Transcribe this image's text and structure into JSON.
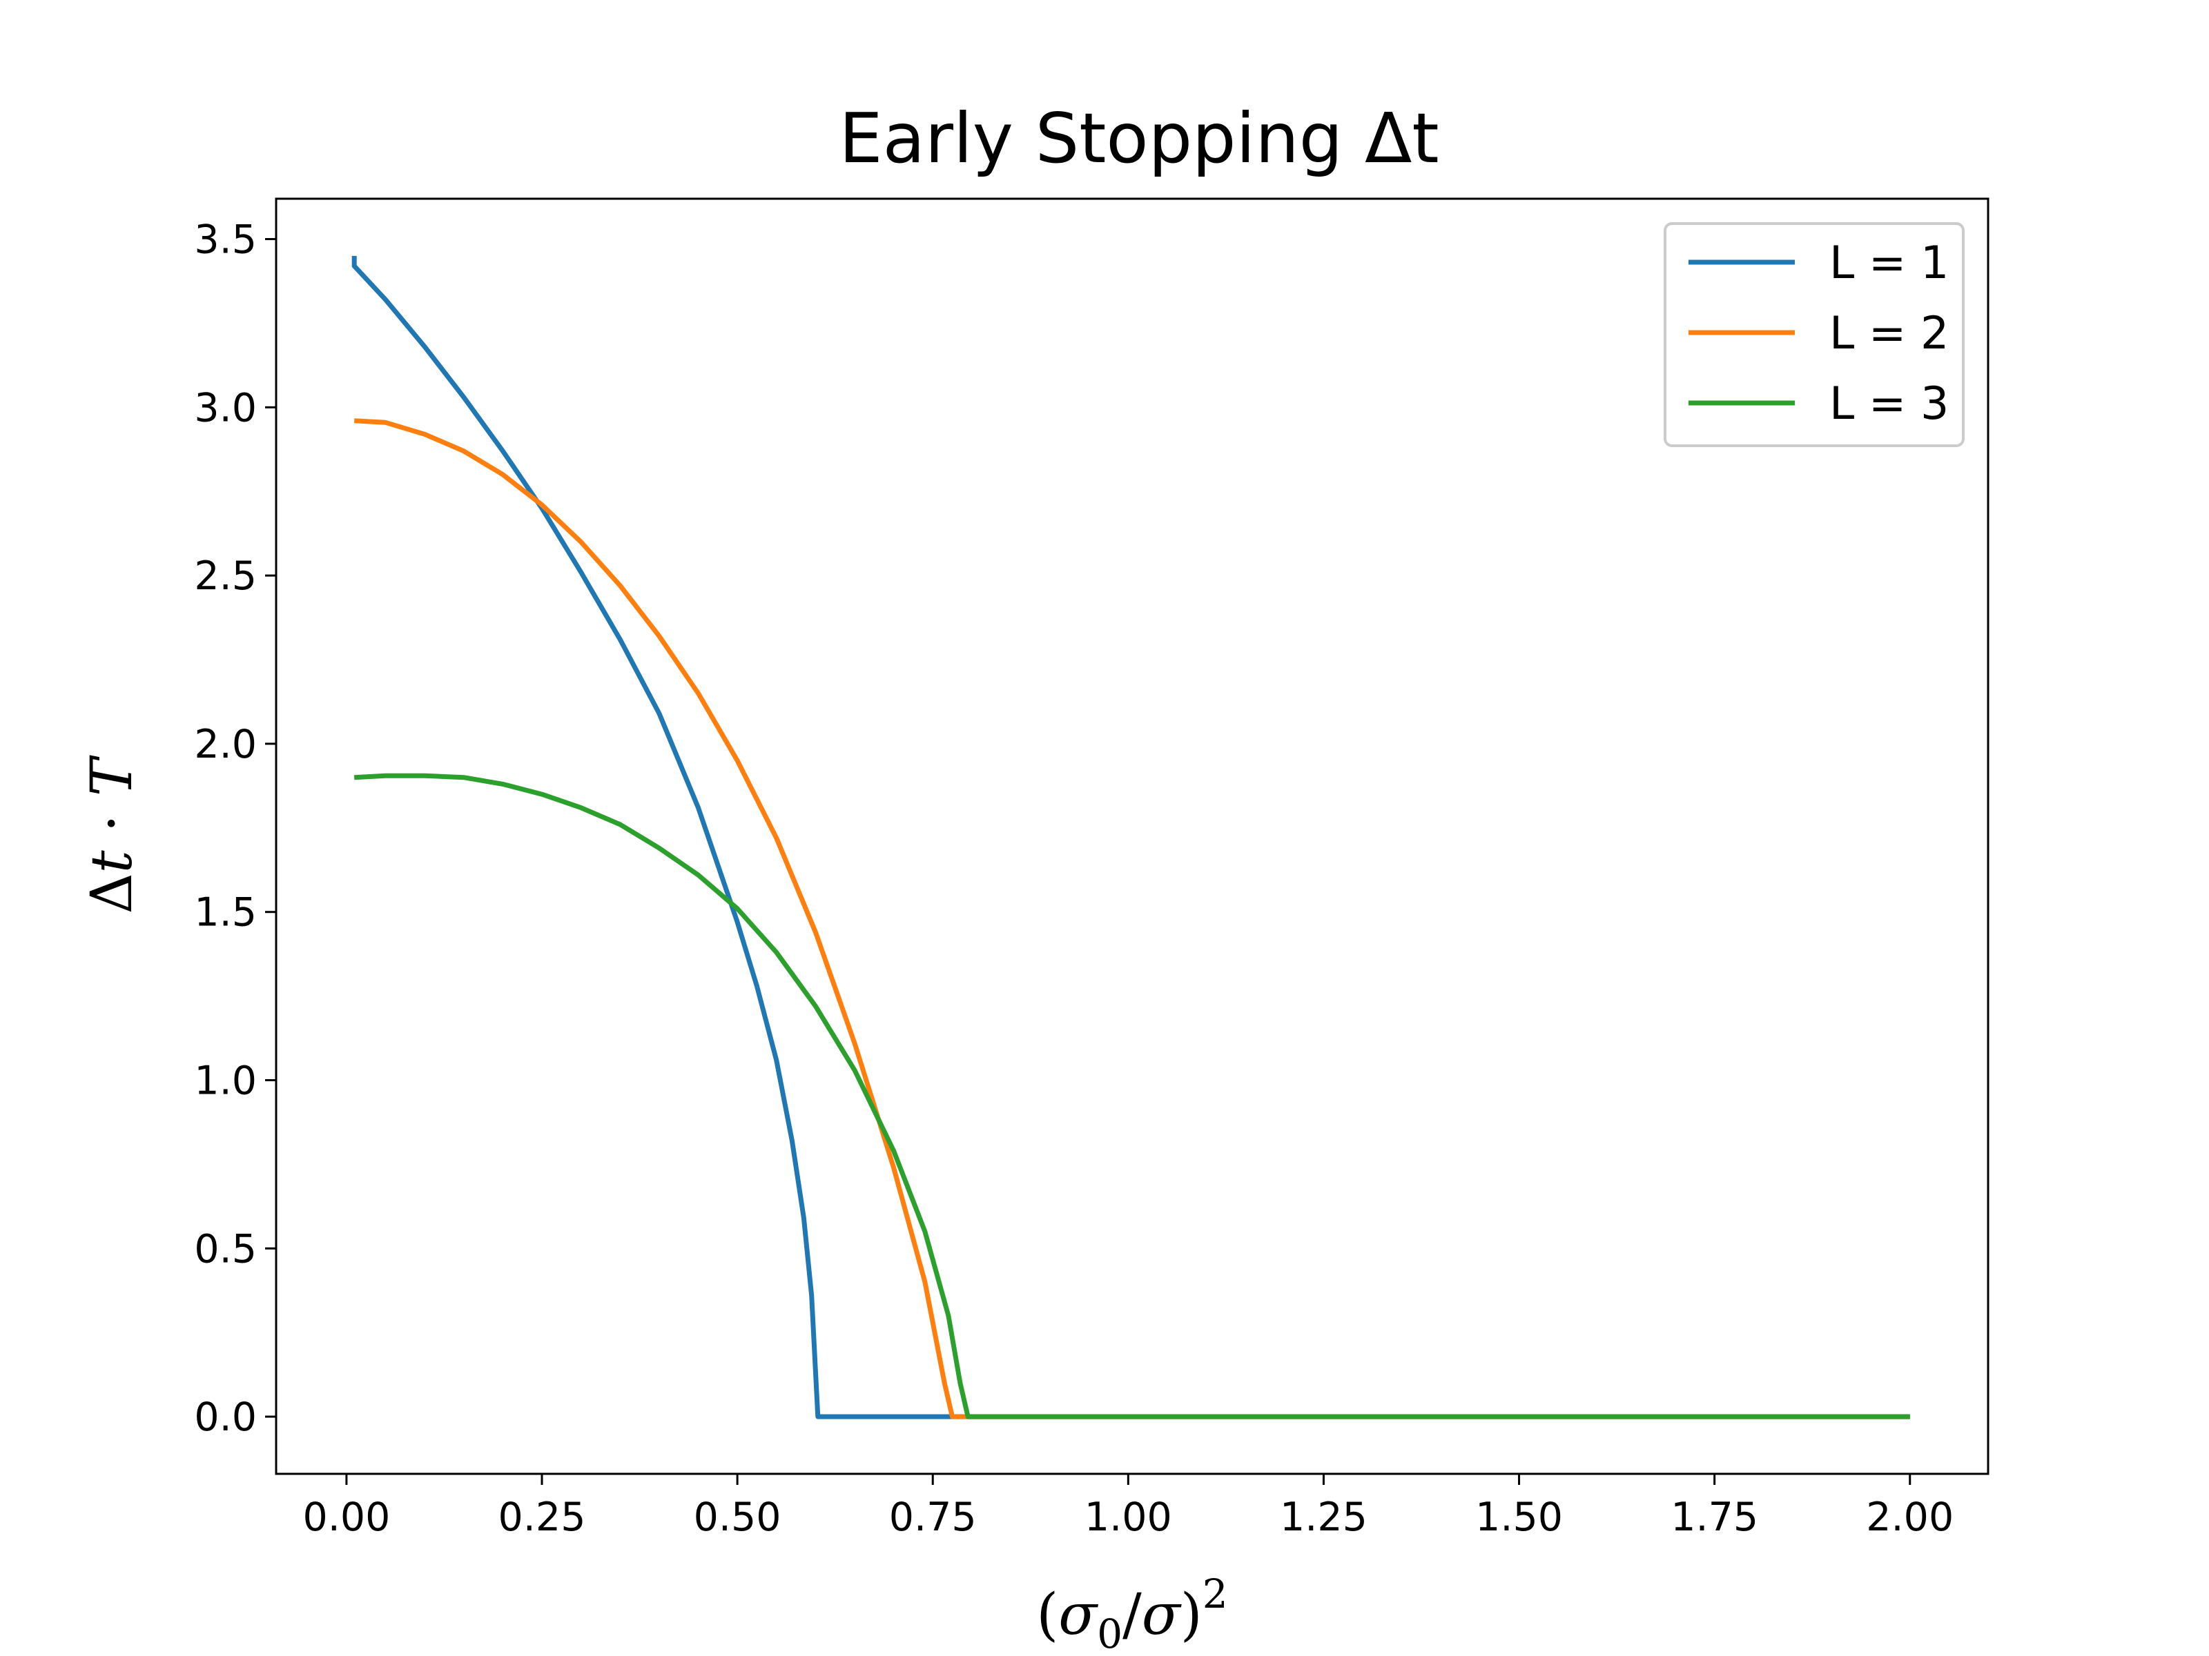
{
  "chart_data": {
    "type": "line",
    "title": "Early Stopping Δt",
    "xlabel": "(σ0/σ)2",
    "ylabel": "Δt · T",
    "xlim": [
      -0.09,
      2.1
    ],
    "ylim": [
      -0.17,
      3.62
    ],
    "x_ticks": [
      0.0,
      0.25,
      0.5,
      0.75,
      1.0,
      1.25,
      1.5,
      1.75,
      2.0
    ],
    "x_tick_labels": [
      "0.00",
      "0.25",
      "0.50",
      "0.75",
      "1.00",
      "1.25",
      "1.50",
      "1.75",
      "2.00"
    ],
    "y_ticks": [
      0.0,
      0.5,
      1.0,
      1.5,
      2.0,
      2.5,
      3.0,
      3.5
    ],
    "y_tick_labels": [
      "0.0",
      "0.5",
      "1.0",
      "1.5",
      "2.0",
      "2.5",
      "3.0",
      "3.5"
    ],
    "grid": false,
    "legend_position": "top-right",
    "series": [
      {
        "name": "L = 1",
        "color": "#1f77b4",
        "points": [
          [
            0.01,
            3.45
          ],
          [
            0.01,
            3.42
          ],
          [
            0.05,
            3.32
          ],
          [
            0.1,
            3.18
          ],
          [
            0.15,
            3.03
          ],
          [
            0.2,
            2.87
          ],
          [
            0.25,
            2.7
          ],
          [
            0.3,
            2.51
          ],
          [
            0.35,
            2.31
          ],
          [
            0.4,
            2.09
          ],
          [
            0.45,
            1.81
          ],
          [
            0.5,
            1.47
          ],
          [
            0.525,
            1.28
          ],
          [
            0.55,
            1.06
          ],
          [
            0.57,
            0.82
          ],
          [
            0.585,
            0.59
          ],
          [
            0.595,
            0.36
          ],
          [
            0.603,
            0.0
          ],
          [
            2.0,
            0.0
          ]
        ]
      },
      {
        "name": "L = 2",
        "color": "#ff7f0e",
        "points": [
          [
            0.01,
            2.96
          ],
          [
            0.05,
            2.955
          ],
          [
            0.1,
            2.92
          ],
          [
            0.15,
            2.87
          ],
          [
            0.2,
            2.8
          ],
          [
            0.25,
            2.71
          ],
          [
            0.3,
            2.6
          ],
          [
            0.35,
            2.47
          ],
          [
            0.4,
            2.32
          ],
          [
            0.45,
            2.15
          ],
          [
            0.5,
            1.95
          ],
          [
            0.55,
            1.72
          ],
          [
            0.6,
            1.44
          ],
          [
            0.65,
            1.11
          ],
          [
            0.7,
            0.74
          ],
          [
            0.74,
            0.4
          ],
          [
            0.765,
            0.1
          ],
          [
            0.775,
            0.0
          ],
          [
            2.0,
            0.0
          ]
        ]
      },
      {
        "name": "L = 3",
        "color": "#2ca02c",
        "points": [
          [
            0.01,
            1.9
          ],
          [
            0.05,
            1.905
          ],
          [
            0.1,
            1.905
          ],
          [
            0.15,
            1.9
          ],
          [
            0.2,
            1.88
          ],
          [
            0.25,
            1.85
          ],
          [
            0.3,
            1.81
          ],
          [
            0.35,
            1.76
          ],
          [
            0.4,
            1.69
          ],
          [
            0.45,
            1.61
          ],
          [
            0.5,
            1.51
          ],
          [
            0.55,
            1.38
          ],
          [
            0.6,
            1.22
          ],
          [
            0.65,
            1.03
          ],
          [
            0.7,
            0.79
          ],
          [
            0.74,
            0.55
          ],
          [
            0.77,
            0.3
          ],
          [
            0.785,
            0.1
          ],
          [
            0.795,
            0.0
          ],
          [
            2.0,
            0.0
          ]
        ]
      }
    ]
  }
}
